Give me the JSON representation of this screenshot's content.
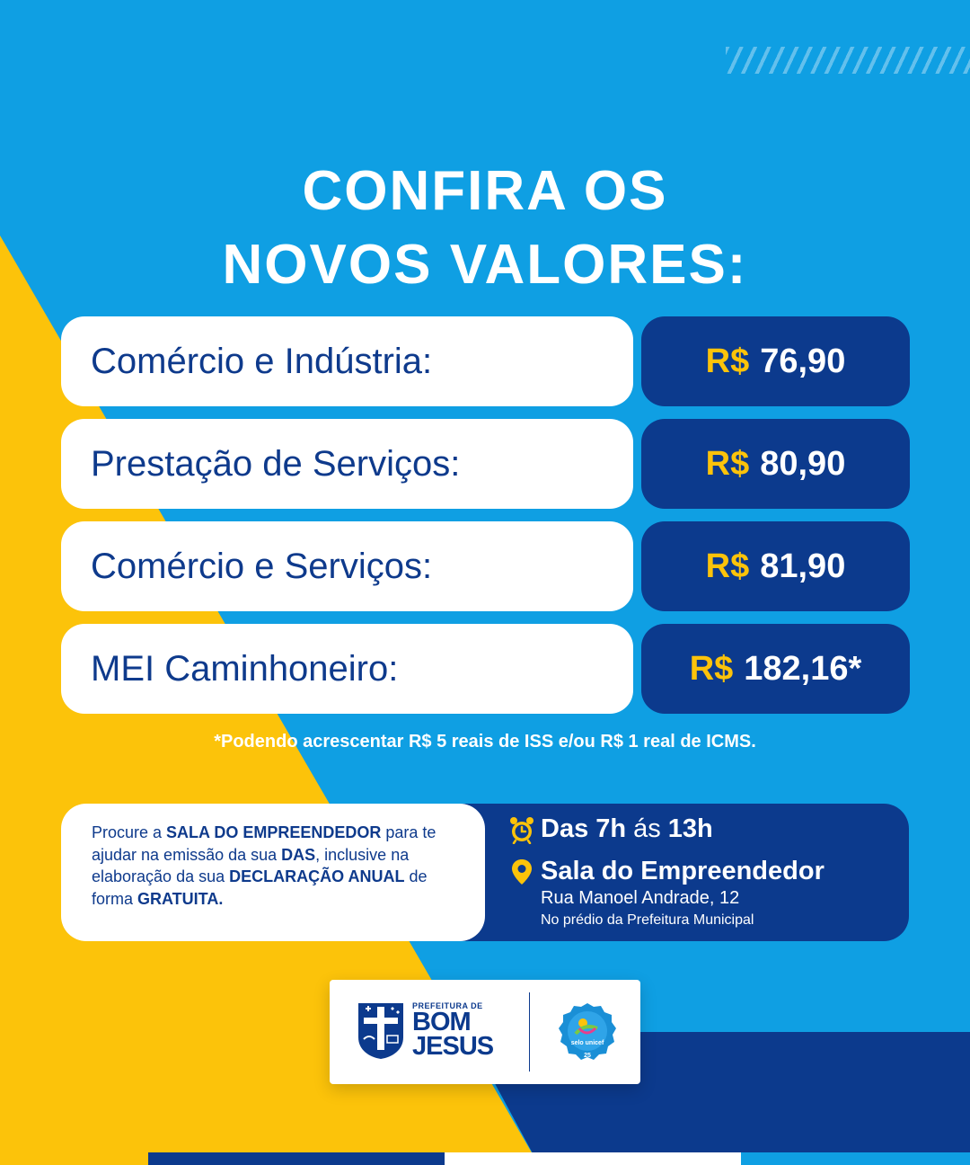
{
  "colors": {
    "background_blue": "#0f9fe3",
    "yellow": "#fcc30a",
    "navy": "#0c3a8d",
    "text_navy": "#0e3a8c",
    "white": "#ffffff"
  },
  "title": {
    "line1": "CONFIRA OS",
    "line2": "NOVOS VALORES:"
  },
  "prices": [
    {
      "label": "Comércio e Indústria:",
      "currency": "R$",
      "amount": "76,90"
    },
    {
      "label": "Prestação de Serviços:",
      "currency": "R$",
      "amount": "80,90"
    },
    {
      "label": "Comércio e Serviços:",
      "currency": "R$",
      "amount": "81,90"
    },
    {
      "label": "MEI Caminhoneiro:",
      "currency": "R$",
      "amount": "182,16*"
    }
  ],
  "footnote": "*Podendo acrescentar R$ 5 reais de ISS e/ou R$ 1 real de ICMS.",
  "info": {
    "part1": "Procure a ",
    "part2": "SALA DO EMPREENDEDOR",
    "part3": " para te ajudar na emissão da sua ",
    "part4": "DAS",
    "part5": ", inclusive na elaboração da sua ",
    "part6": "DECLARAÇÃO ANUAL",
    "part7": " de forma ",
    "part8": "GRATUITA."
  },
  "schedule": {
    "icon": "alarm-clock-icon",
    "hours_bold_1": "Das 7h",
    "hours_mid": "ás",
    "hours_bold_2": "13h"
  },
  "location": {
    "icon": "map-pin-icon",
    "name": "Sala do Empreendedor",
    "address": "Rua Manoel Andrade, 12",
    "detail": "No prédio da Prefeitura Municipal"
  },
  "logos": {
    "prefeitura_small": "PREFEITURA DE",
    "prefeitura_line1": "BOM",
    "prefeitura_line2": "JESUS",
    "seal_text": "selo unicef"
  }
}
